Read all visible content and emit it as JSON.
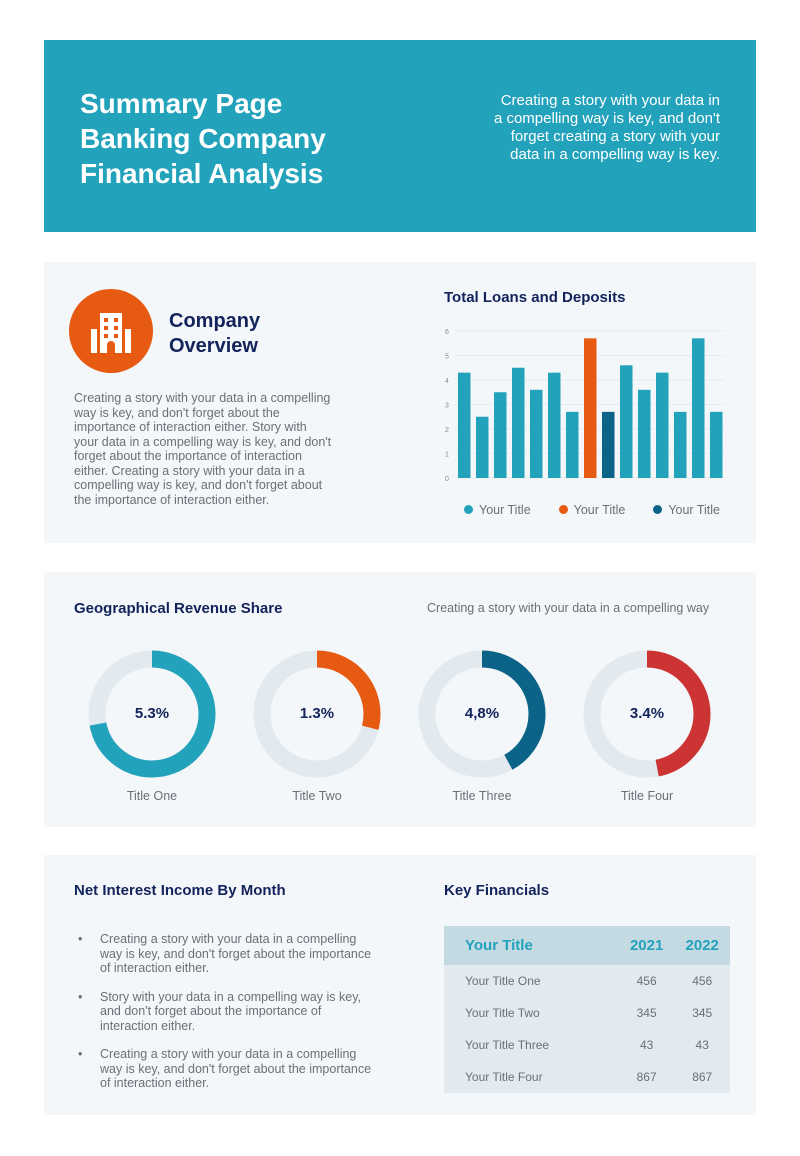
{
  "header": {
    "title": "Summary Page\nBanking Company\nFinancial Analysis",
    "description": "Creating a story with your data in a compelling way is key, and don't forget creating a story with your data in a compelling way is key."
  },
  "overview": {
    "icon": "building-icon",
    "title": "Company Overview",
    "text": "Creating a story with your data in a compelling way is key, and don't forget about the importance of interaction either. Story with your data in a compelling way is key, and don't forget about the importance of interaction either. Creating a story with your data in a compelling way is key, and don't forget about the importance of interaction either."
  },
  "chart_data": {
    "type": "bar",
    "title": "Total Loans and Deposits",
    "ylim": [
      0,
      6
    ],
    "yticks": [
      "0",
      "1",
      "2",
      "3",
      "4",
      "5",
      "6"
    ],
    "grid": true,
    "legend_placement": "bottom",
    "values": [
      4.3,
      2.5,
      3.5,
      4.5,
      3.6,
      4.3,
      2.7,
      5.7,
      2.7,
      4.6,
      3.6,
      4.3,
      2.7,
      5.7,
      2.7
    ],
    "series_index": [
      0,
      0,
      0,
      0,
      0,
      0,
      0,
      1,
      2,
      0,
      0,
      0,
      0,
      0,
      0
    ],
    "series": [
      {
        "name": "Your Title",
        "color": "#23a2bb"
      },
      {
        "name": "Your Title",
        "color": "#e65a12"
      },
      {
        "name": "Your Title",
        "color": "#0b6388"
      }
    ]
  },
  "geo": {
    "title": "Geographical Revenue Share",
    "subtitle": "Creating a story with your data in a compelling way",
    "donuts": [
      {
        "value": "5.3%",
        "label": "Title One",
        "fill": 0.72,
        "color": "#23a2bb"
      },
      {
        "value": "1.3%",
        "label": "Title Two",
        "fill": 0.29,
        "color": "#e65a12"
      },
      {
        "value": "4,8%",
        "label": "Title Three",
        "fill": 0.42,
        "color": "#0b6388"
      },
      {
        "value": "3.4%",
        "label": "Title Four",
        "fill": 0.47,
        "color": "#cc3333"
      }
    ]
  },
  "nii": {
    "title": "Net Interest Income By Month",
    "bullets": [
      "Creating a story with your data in a compelling way is key, and don't forget about the importance of interaction either.",
      "Story with your data in a compelling way is key, and don't forget about the importance of interaction either.",
      "Creating a story with your data in a compelling way is key, and don't forget about the importance of interaction either."
    ]
  },
  "keyfin": {
    "title": "Key Financials",
    "headers": [
      "Your Title",
      "2021",
      "2022"
    ],
    "rows": [
      [
        "Your Title One",
        "456",
        "456"
      ],
      [
        "Your Title Two",
        "345",
        "345"
      ],
      [
        "Your Title Three",
        "43",
        "43"
      ],
      [
        "Your Title Four",
        "867",
        "867"
      ]
    ]
  }
}
